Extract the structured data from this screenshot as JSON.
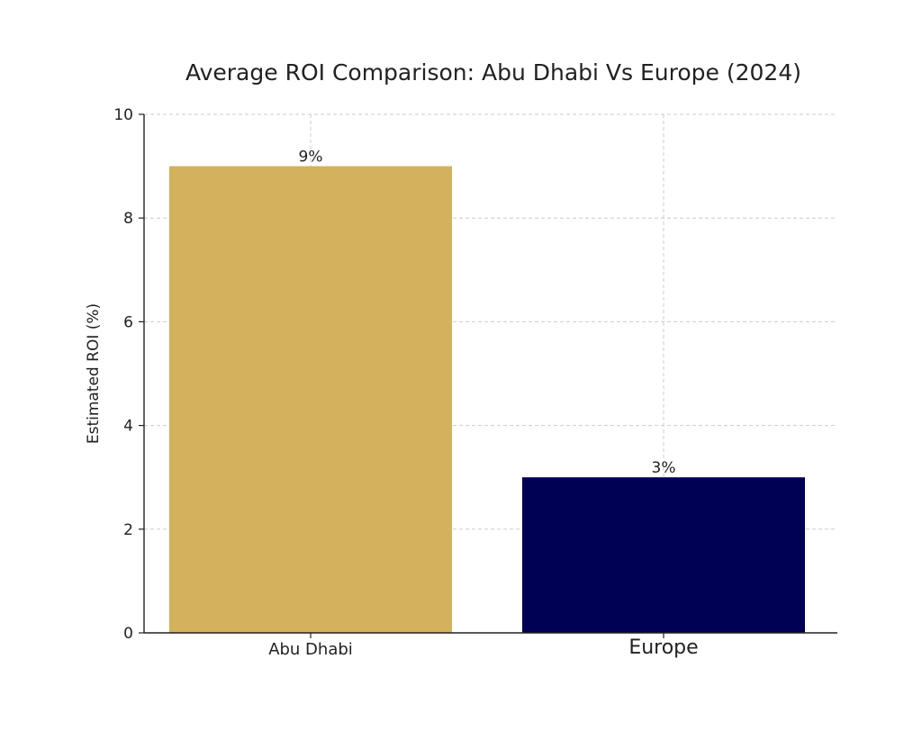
{
  "chart_data": {
    "type": "bar",
    "title": "Average ROI Comparison: Abu Dhabi Vs Europe (2024)",
    "xlabel": "",
    "ylabel": "Estimated ROI (%)",
    "categories": [
      "Abu Dhabi",
      "Europe"
    ],
    "values": [
      9,
      3
    ],
    "data_labels": [
      "9%",
      "3%"
    ],
    "colors": [
      "#D4B15C",
      "#000055"
    ],
    "ylim": [
      0,
      10
    ],
    "yticks": [
      "0",
      "2",
      "4",
      "6",
      "8",
      "10"
    ],
    "grid": true,
    "legend": "none"
  }
}
